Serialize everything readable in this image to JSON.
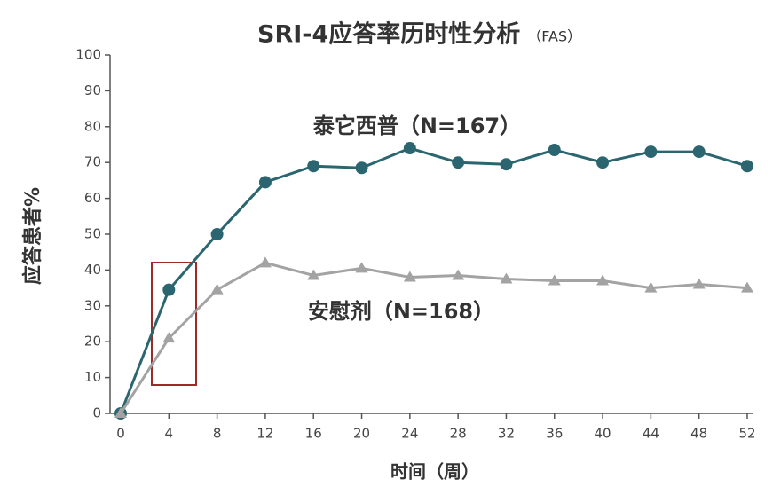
{
  "chart_data": {
    "type": "line",
    "title": "SRI-4应答率历时性分析",
    "subtitle": "（FAS）",
    "x_label": "时间（周）",
    "y_label": "应答患者%",
    "x": [
      0,
      4,
      8,
      12,
      16,
      20,
      24,
      28,
      32,
      36,
      40,
      44,
      48,
      52
    ],
    "series": [
      {
        "name": "泰它西普（N=167）",
        "color": "#2b6670",
        "label_color": "#d4592e",
        "marker": "circle",
        "values": [
          0,
          34.5,
          50,
          64.5,
          69,
          68.5,
          74,
          70,
          69.5,
          73.5,
          70,
          73,
          73,
          69
        ]
      },
      {
        "name": "安慰剂（N=168）",
        "color": "#a3a3a3",
        "label_color": "#6f6f6f",
        "marker": "triangle",
        "values": [
          0,
          21,
          34.5,
          42,
          38.5,
          40.5,
          38,
          38.5,
          37.5,
          37,
          37,
          35,
          36,
          35
        ]
      }
    ],
    "xlim": [
      0,
      52
    ],
    "xticks": [
      0,
      4,
      8,
      12,
      16,
      20,
      24,
      28,
      32,
      36,
      40,
      44,
      48,
      52
    ],
    "ylim": [
      0,
      100
    ],
    "yticks": [
      0,
      10,
      20,
      30,
      40,
      50,
      60,
      70,
      80,
      90,
      100
    ],
    "grid": false
  }
}
